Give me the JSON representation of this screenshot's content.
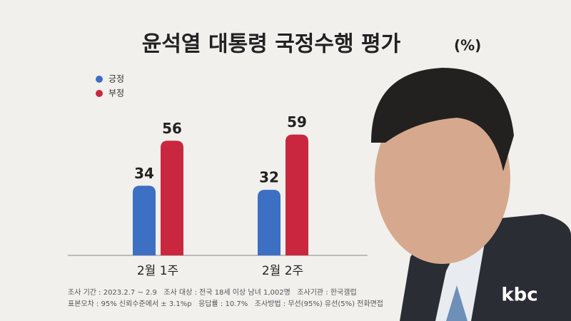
{
  "chart_data": {
    "type": "bar",
    "title": "윤석열 대통령 국정수행 평가",
    "unit": "(%)",
    "categories": [
      "2월 1주",
      "2월 2주"
    ],
    "series": [
      {
        "name": "긍정",
        "color": "#3d6fc2",
        "values": [
          34,
          32
        ]
      },
      {
        "name": "부정",
        "color": "#c9273f",
        "values": [
          56,
          59
        ]
      }
    ],
    "notes": [
      "조사 기간 : 2023.2.7 ~ 2.9   조사 대상 : 전국 18세 이상 남녀 1,002명   조사기관 : 한국갤럽",
      "표본오차 : 95% 신뢰수준에서 ± 3.1%p   응답률 : 10.7%   조사방법 : 무선(95%) 유선(5%) 전화면접"
    ],
    "logo": "kbc"
  }
}
